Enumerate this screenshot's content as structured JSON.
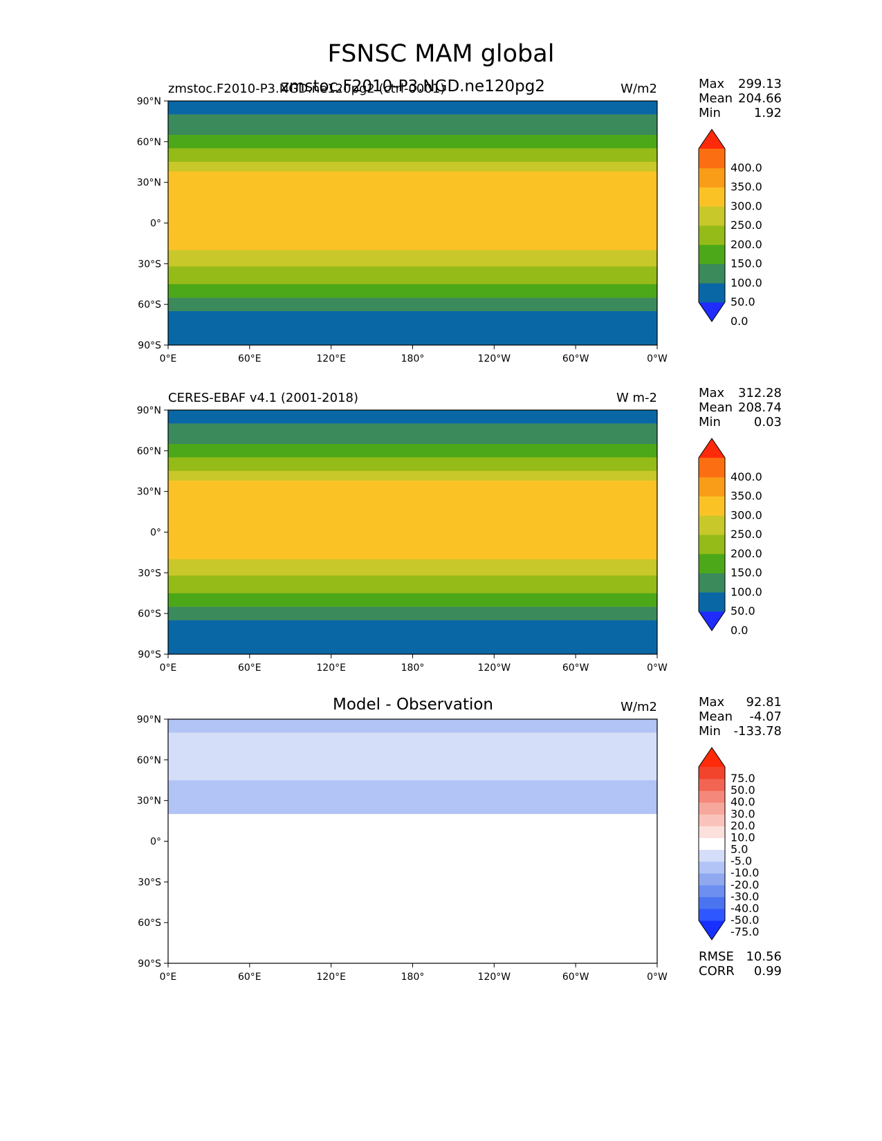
{
  "main_title": "FSNSC MAM global",
  "panels": [
    {
      "left_title": "zmstoc.F2010-P3.NGD.ne120pg2 (ctrl-0001)",
      "center_title": "zmstoc.F2010-P3.NGD.ne120pg2",
      "units": "W/m2",
      "stats": {
        "max_label": "Max",
        "max": "299.13",
        "mean_label": "Mean",
        "mean": "204.66",
        "min_label": "Min",
        "min": "1.92"
      },
      "colorbar": {
        "ticks": [
          "400.0",
          "350.0",
          "300.0",
          "250.0",
          "200.0",
          "150.0",
          "100.0",
          "50.0",
          "0.0"
        ],
        "colors": [
          "#1f2bff",
          "#0a67a6",
          "#3a8a5c",
          "#4ca818",
          "#95bb18",
          "#c8c82a",
          "#fbc226",
          "#f99c18",
          "#fb6f12",
          "#ff2a0a"
        ]
      }
    },
    {
      "left_title": "CERES-EBAF v4.1 (2001-2018)",
      "center_title": "",
      "units": "W m-2",
      "stats": {
        "max_label": "Max",
        "max": "312.28",
        "mean_label": "Mean",
        "mean": "208.74",
        "min_label": "Min",
        "min": "0.03"
      },
      "colorbar": {
        "ticks": [
          "400.0",
          "350.0",
          "300.0",
          "250.0",
          "200.0",
          "150.0",
          "100.0",
          "50.0",
          "0.0"
        ],
        "colors": [
          "#1f2bff",
          "#0a67a6",
          "#3a8a5c",
          "#4ca818",
          "#95bb18",
          "#c8c82a",
          "#fbc226",
          "#f99c18",
          "#fb6f12",
          "#ff2a0a"
        ]
      }
    },
    {
      "left_title": "",
      "center_title": "Model - Observation",
      "units": "W/m2",
      "stats": {
        "max_label": "Max",
        "max": "92.81",
        "mean_label": "Mean",
        "mean": "-4.07",
        "min_label": "Min",
        "min": "-133.78"
      },
      "extra_stats": {
        "rmse_label": "RMSE",
        "rmse": "10.56",
        "corr_label": "CORR",
        "corr": "0.99"
      },
      "colorbar": {
        "ticks": [
          "75.0",
          "50.0",
          "40.0",
          "30.0",
          "20.0",
          "10.0",
          "5.0",
          "-5.0",
          "-10.0",
          "-20.0",
          "-30.0",
          "-40.0",
          "-50.0",
          "-75.0"
        ],
        "colors": [
          "#1730ff",
          "#2f57ff",
          "#4a73f0",
          "#6c8ff0",
          "#8fa8f0",
          "#b2c3f5",
          "#d4def8",
          "#ffffff",
          "#fbe0dc",
          "#f9c3bb",
          "#f7a79c",
          "#f4887a",
          "#f26552",
          "#f2432c",
          "#ff2a0a"
        ]
      }
    }
  ],
  "axes": {
    "x_ticks": [
      "0°E",
      "60°E",
      "120°E",
      "180°",
      "120°W",
      "60°W",
      "0°W"
    ],
    "y_ticks": [
      "90°N",
      "60°N",
      "30°N",
      "0°",
      "30°S",
      "60°S",
      "90°S"
    ]
  },
  "chart_data": [
    {
      "type": "heatmap",
      "title": "zmstoc.F2010-P3.NGD.ne120pg2",
      "units": "W/m2",
      "x_ticks": [
        "0°E",
        "60°E",
        "120°E",
        "180°",
        "120°W",
        "60°W",
        "0°W"
      ],
      "y_ticks": [
        "90°N",
        "60°N",
        "30°N",
        "0°",
        "30°S",
        "60°S",
        "90°S"
      ],
      "lat_bands": [
        {
          "lat_from": 90,
          "lat_to": 80,
          "value": 25
        },
        {
          "lat_from": 80,
          "lat_to": 65,
          "value": 75
        },
        {
          "lat_from": 65,
          "lat_to": 55,
          "value": 125
        },
        {
          "lat_from": 55,
          "lat_to": 45,
          "value": 175
        },
        {
          "lat_from": 45,
          "lat_to": 38,
          "value": 225
        },
        {
          "lat_from": 38,
          "lat_to": -20,
          "value": 275
        },
        {
          "lat_from": -20,
          "lat_to": -32,
          "value": 225
        },
        {
          "lat_from": -32,
          "lat_to": -45,
          "value": 175
        },
        {
          "lat_from": -45,
          "lat_to": -55,
          "value": 125
        },
        {
          "lat_from": -55,
          "lat_to": -65,
          "value": 75
        },
        {
          "lat_from": -65,
          "lat_to": -90,
          "value": 25
        }
      ],
      "stats": {
        "max": 299.13,
        "mean": 204.66,
        "min": 1.92
      }
    },
    {
      "type": "heatmap",
      "title": "CERES-EBAF v4.1 (2001-2018)",
      "units": "W m-2",
      "x_ticks": [
        "0°E",
        "60°E",
        "120°E",
        "180°",
        "120°W",
        "60°W",
        "0°W"
      ],
      "y_ticks": [
        "90°N",
        "60°N",
        "30°N",
        "0°",
        "30°S",
        "60°S",
        "90°S"
      ],
      "lat_bands": [
        {
          "lat_from": 90,
          "lat_to": 80,
          "value": 25
        },
        {
          "lat_from": 80,
          "lat_to": 65,
          "value": 75
        },
        {
          "lat_from": 65,
          "lat_to": 55,
          "value": 125
        },
        {
          "lat_from": 55,
          "lat_to": 45,
          "value": 175
        },
        {
          "lat_from": 45,
          "lat_to": 38,
          "value": 225
        },
        {
          "lat_from": 38,
          "lat_to": -20,
          "value": 275
        },
        {
          "lat_from": -20,
          "lat_to": -32,
          "value": 225
        },
        {
          "lat_from": -32,
          "lat_to": -45,
          "value": 175
        },
        {
          "lat_from": -45,
          "lat_to": -55,
          "value": 125
        },
        {
          "lat_from": -55,
          "lat_to": -65,
          "value": 75
        },
        {
          "lat_from": -65,
          "lat_to": -90,
          "value": 25
        }
      ],
      "stats": {
        "max": 312.28,
        "mean": 208.74,
        "min": 0.03
      }
    },
    {
      "type": "heatmap",
      "title": "Model - Observation",
      "units": "W/m2",
      "x_ticks": [
        "0°E",
        "60°E",
        "120°E",
        "180°",
        "120°W",
        "60°W",
        "0°W"
      ],
      "y_ticks": [
        "90°N",
        "60°N",
        "30°N",
        "0°",
        "30°S",
        "60°S",
        "90°S"
      ],
      "lat_bands": [
        {
          "lat_from": 90,
          "lat_to": 80,
          "value": -15
        },
        {
          "lat_from": 80,
          "lat_to": 45,
          "value": -7
        },
        {
          "lat_from": 45,
          "lat_to": 20,
          "value": -12
        },
        {
          "lat_from": 20,
          "lat_to": -90,
          "value": 0
        }
      ],
      "stats": {
        "max": 92.81,
        "mean": -4.07,
        "min": -133.78,
        "rmse": 10.56,
        "corr": 0.99
      }
    }
  ]
}
